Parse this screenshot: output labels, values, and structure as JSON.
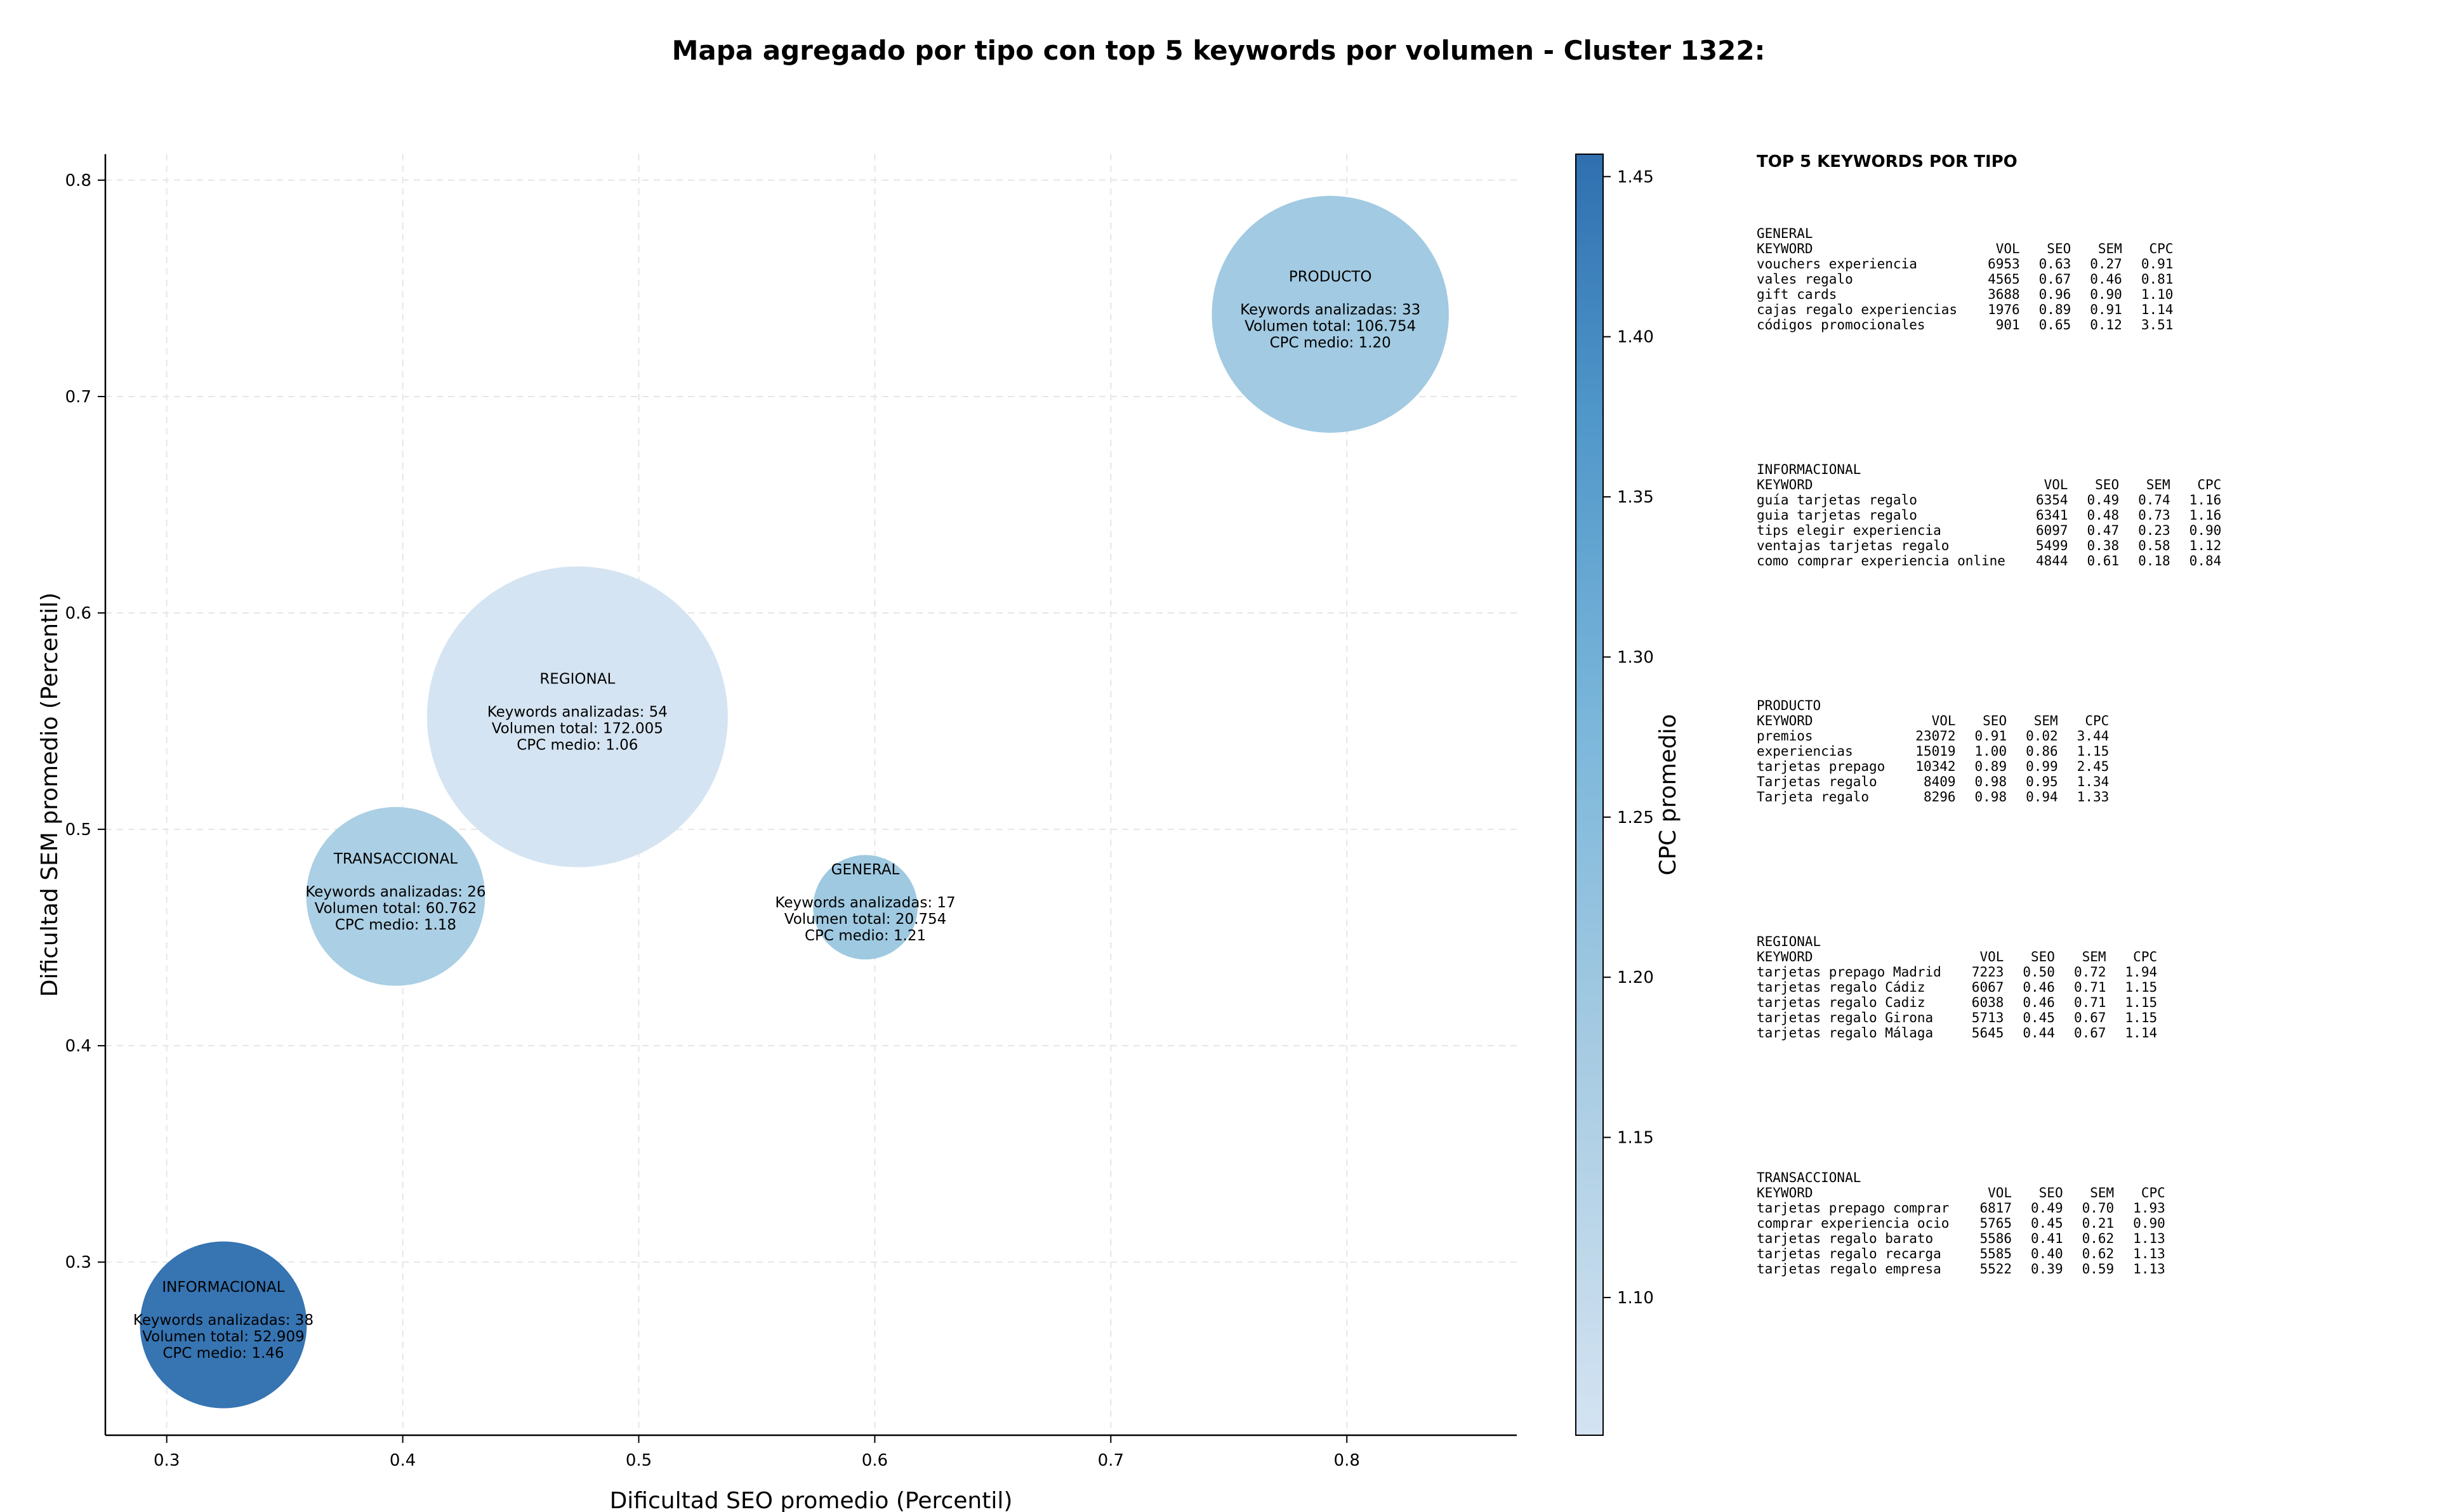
{
  "chart_data": {
    "type": "scatter",
    "title": "Mapa agregado por tipo con top 5 keywords por volumen - Cluster 1322:",
    "xlabel": "Dificultad SEO promedio (Percentil)",
    "ylabel": "Dificultad SEM promedio (Percentil)",
    "xlim": [
      0.274,
      0.872
    ],
    "ylim": [
      0.22,
      0.812
    ],
    "xticks": [
      0.3,
      0.4,
      0.5,
      0.6,
      0.7,
      0.8
    ],
    "yticks": [
      0.3,
      0.4,
      0.5,
      0.6,
      0.7,
      0.8
    ],
    "grid": true,
    "colorbar": {
      "label": "CPC promedio",
      "min": 1.057,
      "max": 1.457,
      "ticks": [
        1.1,
        1.15,
        1.2,
        1.25,
        1.3,
        1.35,
        1.4,
        1.45
      ]
    },
    "bubble_labels": {
      "keywords": "Keywords analizadas: ",
      "volume": "Volumen total: ",
      "cpc": "CPC medio: "
    },
    "points": [
      {
        "name": "PRODUCTO",
        "x": 0.793,
        "y": 0.738,
        "keywords": "33",
        "volume": "106.754",
        "cpc": "1.20",
        "cpc_value": 1.2,
        "size": 106754,
        "color": "#9fc8e1"
      },
      {
        "name": "REGIONAL",
        "x": 0.474,
        "y": 0.552,
        "keywords": "54",
        "volume": "172.005",
        "cpc": "1.06",
        "cpc_value": 1.06,
        "size": 172005,
        "color": "#d4e3f2"
      },
      {
        "name": "TRANSACCIONAL",
        "x": 0.397,
        "y": 0.469,
        "keywords": "26",
        "volume": "60.762",
        "cpc": "1.18",
        "cpc_value": 1.18,
        "size": 60762,
        "color": "#a8cde3"
      },
      {
        "name": "GENERAL",
        "x": 0.596,
        "y": 0.464,
        "keywords": "17",
        "volume": "20.754",
        "cpc": "1.21",
        "cpc_value": 1.21,
        "size": 20754,
        "color": "#9bc7e0"
      },
      {
        "name": "INFORMACIONAL",
        "x": 0.324,
        "y": 0.271,
        "keywords": "38",
        "volume": "52.909",
        "cpc": "1.46",
        "cpc_value": 1.46,
        "size": 52909,
        "color": "#2f6fb0"
      }
    ]
  },
  "side_panel": {
    "title": "TOP 5 KEYWORDS POR TIPO",
    "columns": {
      "keyword": "KEYWORD",
      "vol": "VOL",
      "seo": "SEO",
      "sem": "SEM",
      "cpc": "CPC"
    },
    "groups": [
      {
        "name": "GENERAL",
        "rows": [
          {
            "keyword": "vouchers experiencia",
            "vol": "6953",
            "seo": "0.63",
            "sem": "0.27",
            "cpc": "0.91"
          },
          {
            "keyword": "vales regalo",
            "vol": "4565",
            "seo": "0.67",
            "sem": "0.46",
            "cpc": "0.81"
          },
          {
            "keyword": "gift cards",
            "vol": "3688",
            "seo": "0.96",
            "sem": "0.90",
            "cpc": "1.10"
          },
          {
            "keyword": "cajas regalo experiencias",
            "vol": "1976",
            "seo": "0.89",
            "sem": "0.91",
            "cpc": "1.14"
          },
          {
            "keyword": "códigos promocionales",
            "vol": "901",
            "seo": "0.65",
            "sem": "0.12",
            "cpc": "3.51"
          }
        ]
      },
      {
        "name": "INFORMACIONAL",
        "rows": [
          {
            "keyword": "guía tarjetas regalo",
            "vol": "6354",
            "seo": "0.49",
            "sem": "0.74",
            "cpc": "1.16"
          },
          {
            "keyword": "guia tarjetas regalo",
            "vol": "6341",
            "seo": "0.48",
            "sem": "0.73",
            "cpc": "1.16"
          },
          {
            "keyword": "tips elegir experiencia",
            "vol": "6097",
            "seo": "0.47",
            "sem": "0.23",
            "cpc": "0.90"
          },
          {
            "keyword": "ventajas tarjetas regalo",
            "vol": "5499",
            "seo": "0.38",
            "sem": "0.58",
            "cpc": "1.12"
          },
          {
            "keyword": "como comprar experiencia online",
            "vol": "4844",
            "seo": "0.61",
            "sem": "0.18",
            "cpc": "0.84"
          }
        ]
      },
      {
        "name": "PRODUCTO",
        "rows": [
          {
            "keyword": "premios",
            "vol": "23072",
            "seo": "0.91",
            "sem": "0.02",
            "cpc": "3.44"
          },
          {
            "keyword": "experiencias",
            "vol": "15019",
            "seo": "1.00",
            "sem": "0.86",
            "cpc": "1.15"
          },
          {
            "keyword": "tarjetas prepago",
            "vol": "10342",
            "seo": "0.89",
            "sem": "0.99",
            "cpc": "2.45"
          },
          {
            "keyword": "Tarjetas regalo",
            "vol": "8409",
            "seo": "0.98",
            "sem": "0.95",
            "cpc": "1.34"
          },
          {
            "keyword": "Tarjeta regalo",
            "vol": "8296",
            "seo": "0.98",
            "sem": "0.94",
            "cpc": "1.33"
          }
        ]
      },
      {
        "name": "REGIONAL",
        "rows": [
          {
            "keyword": "tarjetas prepago Madrid",
            "vol": "7223",
            "seo": "0.50",
            "sem": "0.72",
            "cpc": "1.94"
          },
          {
            "keyword": "tarjetas regalo Cádiz",
            "vol": "6067",
            "seo": "0.46",
            "sem": "0.71",
            "cpc": "1.15"
          },
          {
            "keyword": "tarjetas regalo Cadiz",
            "vol": "6038",
            "seo": "0.46",
            "sem": "0.71",
            "cpc": "1.15"
          },
          {
            "keyword": "tarjetas regalo Girona",
            "vol": "5713",
            "seo": "0.45",
            "sem": "0.67",
            "cpc": "1.15"
          },
          {
            "keyword": "tarjetas regalo Málaga",
            "vol": "5645",
            "seo": "0.44",
            "sem": "0.67",
            "cpc": "1.14"
          }
        ]
      },
      {
        "name": "TRANSACCIONAL",
        "rows": [
          {
            "keyword": "tarjetas prepago comprar",
            "vol": "6817",
            "seo": "0.49",
            "sem": "0.70",
            "cpc": "1.93"
          },
          {
            "keyword": "comprar experiencia ocio",
            "vol": "5765",
            "seo": "0.45",
            "sem": "0.21",
            "cpc": "0.90"
          },
          {
            "keyword": "tarjetas regalo barato",
            "vol": "5586",
            "seo": "0.41",
            "sem": "0.62",
            "cpc": "1.13"
          },
          {
            "keyword": "tarjetas regalo recarga",
            "vol": "5585",
            "seo": "0.40",
            "sem": "0.62",
            "cpc": "1.13"
          },
          {
            "keyword": "tarjetas regalo empresa",
            "vol": "5522",
            "seo": "0.39",
            "sem": "0.59",
            "cpc": "1.13"
          }
        ]
      }
    ]
  }
}
